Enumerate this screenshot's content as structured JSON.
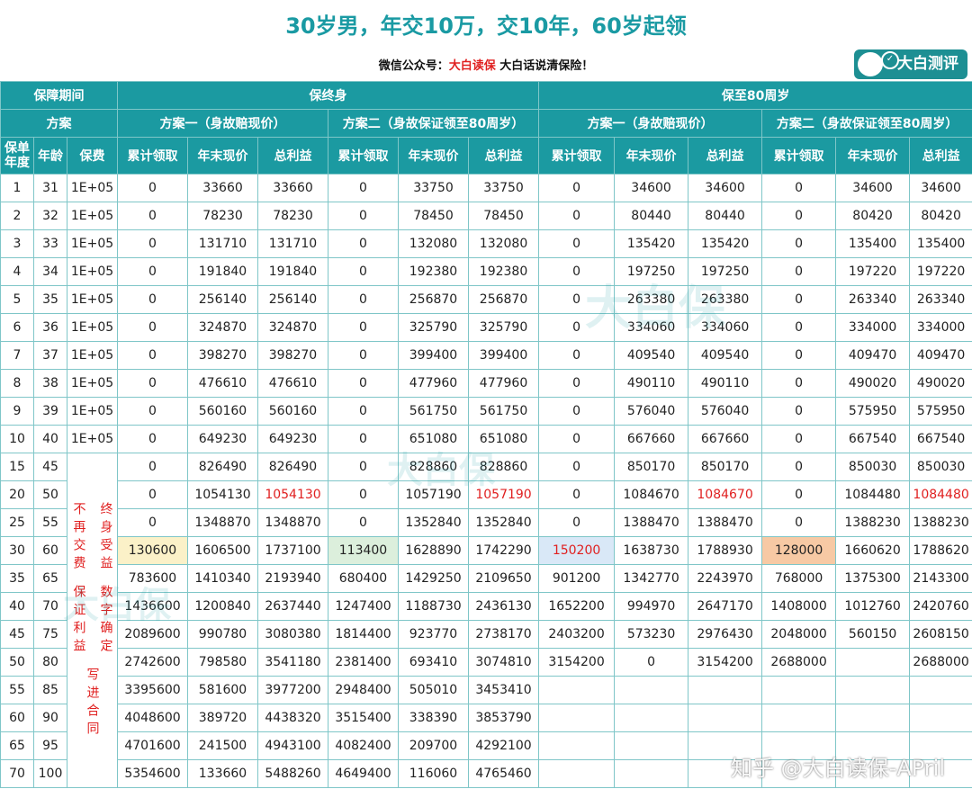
{
  "title": "30岁男，年交10万，交10年，60岁起领",
  "subtitle": {
    "prefix": "微信公众号：",
    "account": "大白读保",
    "suffix": " 大白话说清保险！"
  },
  "brand": "大白测评",
  "watermark": "知乎 @大白读保-APril",
  "watermark_logo": "大白保",
  "header": {
    "period_label": "保障期间",
    "plan_label": "方案",
    "lifetime": "保终身",
    "to80": "保至80周岁",
    "plan1": "方案一（身故赔现价）",
    "plan2": "方案二（身故保证领至80周岁）",
    "col_year": "保单年度",
    "col_age": "年龄",
    "col_premium": "保费",
    "col_cum": "累计领取",
    "col_cv": "年末现价",
    "col_total": "总利益"
  },
  "note": {
    "col1": "终身受益",
    "col2": "不再交费",
    "col3": "数字确定",
    "col4": "保证利益",
    "col5": "写进合同"
  },
  "rows": [
    [
      "1",
      "31",
      "1E+05",
      "0",
      "33660",
      "33660",
      "0",
      "33750",
      "33750",
      "0",
      "34600",
      "34600",
      "0",
      "34600",
      "34600"
    ],
    [
      "2",
      "32",
      "1E+05",
      "0",
      "78230",
      "78230",
      "0",
      "78450",
      "78450",
      "0",
      "80440",
      "80440",
      "0",
      "80420",
      "80420"
    ],
    [
      "3",
      "33",
      "1E+05",
      "0",
      "131710",
      "131710",
      "0",
      "132080",
      "132080",
      "0",
      "135420",
      "135420",
      "0",
      "135400",
      "135400"
    ],
    [
      "4",
      "34",
      "1E+05",
      "0",
      "191840",
      "191840",
      "0",
      "192380",
      "192380",
      "0",
      "197250",
      "197250",
      "0",
      "197220",
      "197220"
    ],
    [
      "5",
      "35",
      "1E+05",
      "0",
      "256140",
      "256140",
      "0",
      "256870",
      "256870",
      "0",
      "263380",
      "263380",
      "0",
      "263340",
      "263340"
    ],
    [
      "6",
      "36",
      "1E+05",
      "0",
      "324870",
      "324870",
      "0",
      "325790",
      "325790",
      "0",
      "334060",
      "334060",
      "0",
      "334000",
      "334000"
    ],
    [
      "7",
      "37",
      "1E+05",
      "0",
      "398270",
      "398270",
      "0",
      "399400",
      "399400",
      "0",
      "409540",
      "409540",
      "0",
      "409470",
      "409470"
    ],
    [
      "8",
      "38",
      "1E+05",
      "0",
      "476610",
      "476610",
      "0",
      "477960",
      "477960",
      "0",
      "490110",
      "490110",
      "0",
      "490020",
      "490020"
    ],
    [
      "9",
      "39",
      "1E+05",
      "0",
      "560160",
      "560160",
      "0",
      "561750",
      "561750",
      "0",
      "576040",
      "576040",
      "0",
      "575950",
      "575950"
    ],
    [
      "10",
      "40",
      "1E+05",
      "0",
      "649230",
      "649230",
      "0",
      "651080",
      "651080",
      "0",
      "667660",
      "667660",
      "0",
      "667540",
      "667540"
    ],
    [
      "15",
      "45",
      "",
      "0",
      "826490",
      "826490",
      "0",
      "828860",
      "828860",
      "0",
      "850170",
      "850170",
      "0",
      "850030",
      "850030"
    ],
    [
      "20",
      "50",
      "",
      "0",
      "1054130",
      "1054130",
      "0",
      "1057190",
      "1057190",
      "0",
      "1084670",
      "1084670",
      "0",
      "1084480",
      "1084480"
    ],
    [
      "25",
      "55",
      "",
      "0",
      "1348870",
      "1348870",
      "0",
      "1352840",
      "1352840",
      "0",
      "1388470",
      "1388470",
      "0",
      "1388230",
      "1388230"
    ],
    [
      "30",
      "60",
      "",
      "130600",
      "1606500",
      "1737100",
      "113400",
      "1628890",
      "1742290",
      "150200",
      "1638730",
      "1788930",
      "128000",
      "1660620",
      "1788620"
    ],
    [
      "35",
      "65",
      "",
      "783600",
      "1410340",
      "2193940",
      "680400",
      "1429250",
      "2109650",
      "901200",
      "1342770",
      "2243970",
      "768000",
      "1375300",
      "2143300"
    ],
    [
      "40",
      "70",
      "",
      "1436600",
      "1200840",
      "2637440",
      "1247400",
      "1188730",
      "2436130",
      "1652200",
      "994970",
      "2647170",
      "1408000",
      "1012760",
      "2420760"
    ],
    [
      "45",
      "75",
      "",
      "2089600",
      "990780",
      "3080380",
      "1814400",
      "923770",
      "2738170",
      "2403200",
      "573230",
      "2976430",
      "2048000",
      "560150",
      "2608150"
    ],
    [
      "50",
      "80",
      "",
      "2742600",
      "798580",
      "3541180",
      "2381400",
      "693410",
      "3074810",
      "3154200",
      "0",
      "3154200",
      "2688000",
      "",
      "2688000"
    ],
    [
      "55",
      "85",
      "",
      "3395600",
      "581600",
      "3977200",
      "2948400",
      "505010",
      "3453410",
      "",
      "",
      "",
      "",
      "",
      ""
    ],
    [
      "60",
      "90",
      "",
      "4048600",
      "389720",
      "4438320",
      "3515400",
      "338390",
      "3853790",
      "",
      "",
      "",
      "",
      "",
      ""
    ],
    [
      "65",
      "95",
      "",
      "4701600",
      "241500",
      "4943100",
      "4082400",
      "209700",
      "4292100",
      "",
      "",
      "",
      "",
      "",
      ""
    ],
    [
      "70",
      "100",
      "",
      "5354600",
      "133660",
      "5488260",
      "4649400",
      "116060",
      "4765460",
      "",
      "",
      "",
      "",
      "",
      ""
    ]
  ],
  "highlight_colors": {
    "yellow": "#fbf1c8",
    "green": "#dcefdc",
    "blue": "#d9e8f7",
    "orange": "#f7c9a4",
    "red_text": "#e02020",
    "header_bg": "#1b9aa1"
  }
}
